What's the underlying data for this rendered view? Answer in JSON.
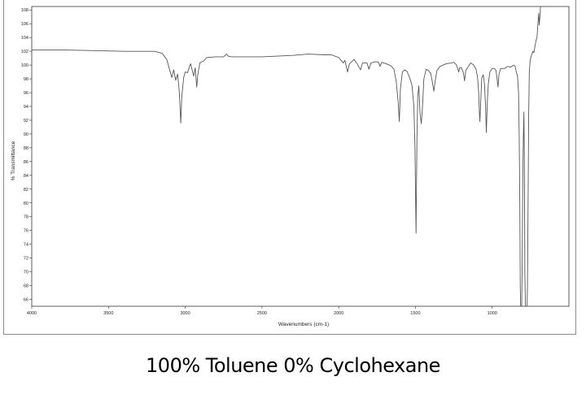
{
  "caption": "100% Toluene 0% Cyclohexane",
  "chart_data": {
    "type": "line",
    "title": "",
    "xlabel": "Wavenumbers (cm-1)",
    "ylabel": "% Transmittance",
    "xlim": [
      4000,
      500
    ],
    "ylim": [
      65,
      108.5
    ],
    "x_ticks": [
      4000,
      3500,
      3000,
      2500,
      2000,
      1500,
      1000
    ],
    "x_tick_labels": [
      "4000",
      "3500",
      "3000",
      "2500",
      "2000",
      "1500",
      "1000"
    ],
    "y_ticks": [
      66,
      68,
      70,
      72,
      74,
      76,
      78,
      80,
      82,
      84,
      86,
      88,
      90,
      92,
      94,
      96,
      98,
      100,
      102,
      104,
      106,
      108
    ],
    "y_tick_labels": [
      "66",
      "68",
      "70",
      "72",
      "74",
      "76",
      "78",
      "80",
      "82",
      "84",
      "86",
      "88",
      "90",
      "92",
      "94",
      "96",
      "98",
      "100",
      "102",
      "104",
      "106",
      "108"
    ],
    "grid": false,
    "line_color": "#555555",
    "series": [
      {
        "name": "",
        "points": [
          [
            4000,
            102.2
          ],
          [
            3800,
            102.2
          ],
          [
            3600,
            102.1
          ],
          [
            3400,
            102.0
          ],
          [
            3200,
            102.0
          ],
          [
            3150,
            101.7
          ],
          [
            3120,
            100.8
          ],
          [
            3100,
            99.2
          ],
          [
            3087,
            98.2
          ],
          [
            3075,
            99.3
          ],
          [
            3062,
            97.8
          ],
          [
            3050,
            98.7
          ],
          [
            3040,
            96.5
          ],
          [
            3035,
            94.5
          ],
          [
            3029,
            91.6
          ],
          [
            3022,
            95.5
          ],
          [
            3010,
            98.2
          ],
          [
            3000,
            99.0
          ],
          [
            2985,
            98.9
          ],
          [
            2965,
            100.2
          ],
          [
            2945,
            98.4
          ],
          [
            2935,
            99.6
          ],
          [
            2925,
            96.8
          ],
          [
            2918,
            98.6
          ],
          [
            2905,
            100.3
          ],
          [
            2880,
            100.6
          ],
          [
            2860,
            101.1
          ],
          [
            2800,
            101.2
          ],
          [
            2750,
            101.2
          ],
          [
            2730,
            101.6
          ],
          [
            2720,
            101.3
          ],
          [
            2700,
            101.2
          ],
          [
            2600,
            101.2
          ],
          [
            2500,
            101.2
          ],
          [
            2400,
            101.3
          ],
          [
            2300,
            101.4
          ],
          [
            2200,
            101.6
          ],
          [
            2100,
            101.5
          ],
          [
            2050,
            101.5
          ],
          [
            2000,
            101.1
          ],
          [
            1970,
            100.3
          ],
          [
            1960,
            100.7
          ],
          [
            1942,
            99.0
          ],
          [
            1930,
            100.2
          ],
          [
            1900,
            100.8
          ],
          [
            1880,
            100.2
          ],
          [
            1858,
            99.3
          ],
          [
            1845,
            100.3
          ],
          [
            1815,
            100.3
          ],
          [
            1803,
            99.4
          ],
          [
            1790,
            100.3
          ],
          [
            1760,
            100.5
          ],
          [
            1740,
            100.4
          ],
          [
            1730,
            99.8
          ],
          [
            1720,
            100.4
          ],
          [
            1690,
            100.2
          ],
          [
            1660,
            99.9
          ],
          [
            1640,
            99.4
          ],
          [
            1625,
            97.6
          ],
          [
            1612,
            94.5
          ],
          [
            1605,
            91.8
          ],
          [
            1598,
            96.5
          ],
          [
            1585,
            99.0
          ],
          [
            1570,
            99.3
          ],
          [
            1555,
            99.1
          ],
          [
            1535,
            98.0
          ],
          [
            1522,
            97.0
          ],
          [
            1510,
            94.0
          ],
          [
            1503,
            88.0
          ],
          [
            1496,
            75.6
          ],
          [
            1490,
            89.5
          ],
          [
            1485,
            95.5
          ],
          [
            1478,
            97.0
          ],
          [
            1470,
            93.0
          ],
          [
            1462,
            91.5
          ],
          [
            1455,
            93.5
          ],
          [
            1445,
            98.0
          ],
          [
            1430,
            99.4
          ],
          [
            1415,
            99.2
          ],
          [
            1400,
            98.8
          ],
          [
            1390,
            97.6
          ],
          [
            1380,
            96.2
          ],
          [
            1372,
            97.6
          ],
          [
            1360,
            99.2
          ],
          [
            1340,
            99.8
          ],
          [
            1300,
            100.2
          ],
          [
            1270,
            100.3
          ],
          [
            1250,
            100.4
          ],
          [
            1232,
            100.0
          ],
          [
            1218,
            99.0
          ],
          [
            1212,
            99.6
          ],
          [
            1200,
            99.6
          ],
          [
            1188,
            98.9
          ],
          [
            1180,
            97.7
          ],
          [
            1172,
            99.2
          ],
          [
            1155,
            99.8
          ],
          [
            1140,
            100.3
          ],
          [
            1120,
            100.0
          ],
          [
            1105,
            99.4
          ],
          [
            1095,
            98.2
          ],
          [
            1088,
            96.0
          ],
          [
            1083,
            93.0
          ],
          [
            1080,
            91.8
          ],
          [
            1075,
            94.5
          ],
          [
            1068,
            98.1
          ],
          [
            1058,
            98.6
          ],
          [
            1050,
            97.2
          ],
          [
            1043,
            94.0
          ],
          [
            1038,
            90.2
          ],
          [
            1032,
            94.5
          ],
          [
            1025,
            97.3
          ],
          [
            1015,
            99.0
          ],
          [
            1000,
            99.5
          ],
          [
            985,
            99.5
          ],
          [
            975,
            99.2
          ],
          [
            968,
            98.0
          ],
          [
            962,
            96.8
          ],
          [
            956,
            98.6
          ],
          [
            945,
            99.5
          ],
          [
            920,
            99.5
          ],
          [
            900,
            99.8
          ],
          [
            880,
            99.7
          ],
          [
            860,
            100.0
          ],
          [
            850,
            99.8
          ],
          [
            843,
            99.0
          ],
          [
            835,
            98.4
          ],
          [
            828,
            96.0
          ],
          [
            824,
            90.0
          ],
          [
            820,
            80.0
          ],
          [
            817,
            68.0
          ],
          [
            814,
            64.5
          ],
          [
            808,
            64.5
          ],
          [
            805,
            70.0
          ],
          [
            802,
            79.0
          ],
          [
            799,
            86.0
          ],
          [
            796,
            90.5
          ],
          [
            793,
            93.2
          ],
          [
            790,
            85.0
          ],
          [
            787,
            70.0
          ],
          [
            783,
            64.5
          ],
          [
            773,
            64.5
          ],
          [
            770,
            68.0
          ],
          [
            766,
            80.0
          ],
          [
            762,
            93.0
          ],
          [
            758,
            99.0
          ],
          [
            752,
            100.8
          ],
          [
            745,
            101.3
          ],
          [
            735,
            102.0
          ],
          [
            728,
            101.8
          ],
          [
            722,
            102.6
          ],
          [
            715,
            103.5
          ],
          [
            708,
            104.0
          ],
          [
            702,
            106.0
          ],
          [
            697,
            107.5
          ],
          [
            693,
            105.8
          ],
          [
            688,
            107.3
          ],
          [
            684,
            109.0
          ]
        ]
      }
    ]
  }
}
